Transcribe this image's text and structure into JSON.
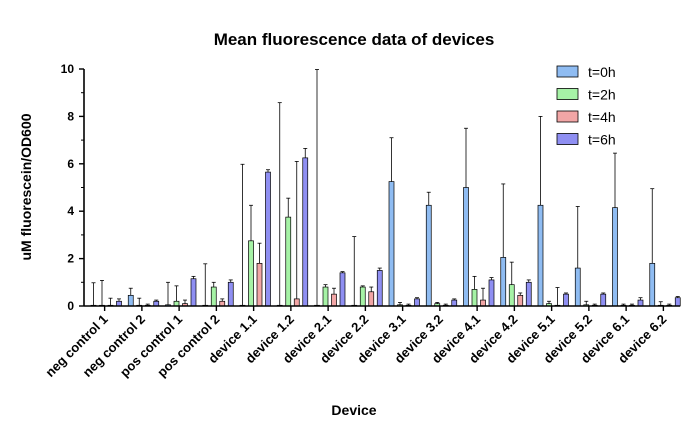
{
  "chart_data": {
    "type": "bar",
    "title": "Mean fluorescence data of devices",
    "xlabel": "Device",
    "ylabel": "uM fluorescein/OD600",
    "ylim": [
      0,
      10
    ],
    "yticks": [
      0,
      2,
      4,
      6,
      8,
      10
    ],
    "legend_position": "top-right",
    "grid": false,
    "error_bars": "upper",
    "categories": [
      "neg control 1",
      "neg control 2",
      "pos control 1",
      "pos control 2",
      "device 1.1",
      "device 1.2",
      "device 2.1",
      "device 2.2",
      "device 3.1",
      "device 3.2",
      "device 4.1",
      "device 4.2",
      "device 5.1",
      "device 5.2",
      "device 6.1",
      "device 6.2"
    ],
    "series": [
      {
        "name": "t=0h",
        "color": "#8fbcf2",
        "values": [
          0.03,
          0.45,
          0.05,
          0.03,
          0.03,
          0.03,
          0.03,
          0.03,
          5.25,
          4.25,
          5.0,
          2.05,
          4.25,
          1.6,
          4.15,
          1.8
        ],
        "errors": [
          0.95,
          0.3,
          0.95,
          1.75,
          5.95,
          8.55,
          9.95,
          2.9,
          1.85,
          0.55,
          2.5,
          3.1,
          3.75,
          2.6,
          2.3,
          3.15
        ]
      },
      {
        "name": "t=2h",
        "color": "#a6f2a6",
        "values": [
          0.03,
          0.03,
          0.2,
          0.8,
          2.75,
          3.75,
          0.8,
          0.8,
          0.05,
          0.1,
          0.7,
          0.9,
          0.1,
          0.05,
          0.03,
          0.03
        ],
        "errors": [
          1.05,
          0.3,
          0.65,
          0.2,
          1.5,
          0.8,
          0.1,
          0.05,
          0.1,
          0.05,
          0.55,
          0.95,
          0.1,
          0.15,
          0.05,
          0.15
        ]
      },
      {
        "name": "t=4h",
        "color": "#f2a6a6",
        "values": [
          0.03,
          0.03,
          0.1,
          0.2,
          1.8,
          0.3,
          0.5,
          0.6,
          0.03,
          0.03,
          0.25,
          0.45,
          0.03,
          0.03,
          0.03,
          0.03
        ],
        "errors": [
          0.3,
          0.05,
          0.15,
          0.1,
          0.85,
          5.8,
          0.25,
          0.2,
          0.05,
          0.05,
          0.5,
          0.1,
          0.75,
          0.05,
          0.05,
          0.05
        ],
        "error_x_offsets_ignored": true
      },
      {
        "name": "t=6h",
        "color": "#8f8ff2",
        "values": [
          0.2,
          0.2,
          1.15,
          1.0,
          5.65,
          6.25,
          1.4,
          1.5,
          0.3,
          0.25,
          1.1,
          1.0,
          0.5,
          0.5,
          0.25,
          0.35
        ],
        "errors": [
          0.1,
          0.05,
          0.1,
          0.1,
          0.1,
          0.4,
          0.05,
          0.1,
          0.05,
          0.05,
          0.1,
          0.1,
          0.05,
          0.05,
          0.1,
          0.05
        ]
      }
    ]
  }
}
